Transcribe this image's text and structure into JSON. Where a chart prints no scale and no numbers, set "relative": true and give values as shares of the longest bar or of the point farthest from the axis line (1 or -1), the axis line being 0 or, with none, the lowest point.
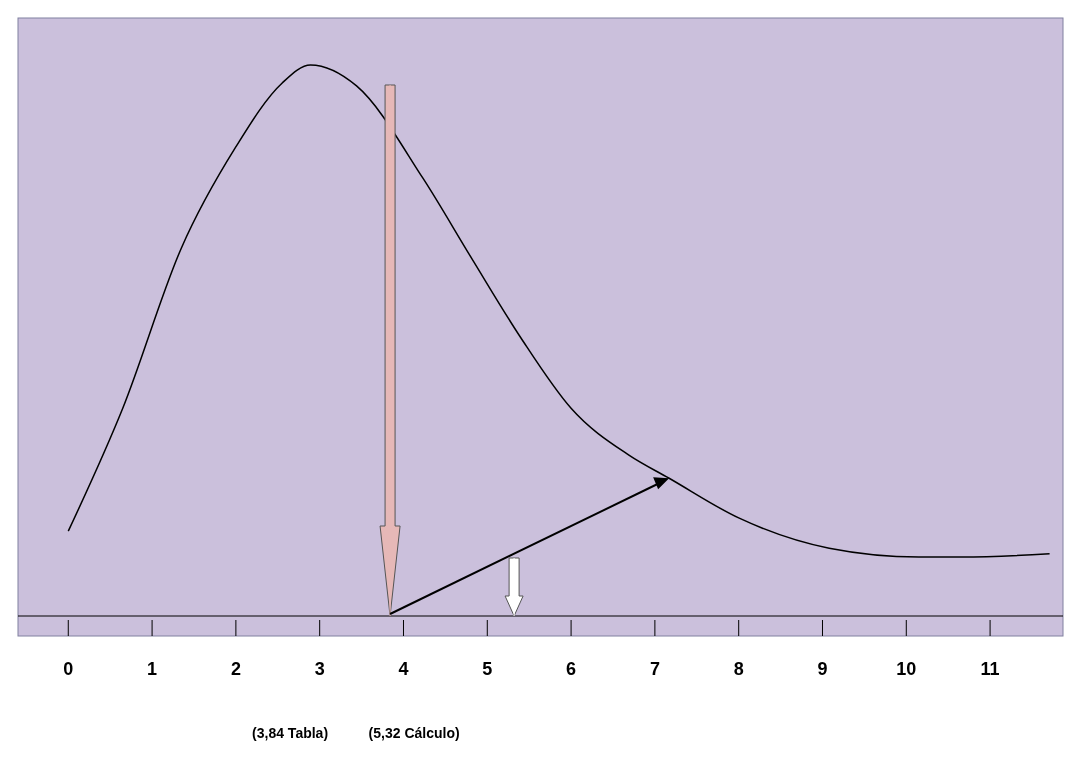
{
  "chart_data": {
    "type": "line",
    "relative": true,
    "x": [
      0,
      0.65,
      1.35,
      1.99,
      2.55,
      2.89,
      3.44,
      4.23,
      4.81,
      5.4,
      6.0,
      6.69,
      7.17,
      8.0,
      9.08,
      10.15,
      10.67,
      11.71
    ],
    "series": [
      {
        "color": "#000000",
        "values": [
          0.154,
          0.377,
          0.668,
          0.849,
          0.967,
          1,
          0.962,
          0.795,
          0.65,
          0.505,
          0.377,
          0.292,
          0.25,
          0.178,
          0.123,
          0.107,
          0.107,
          0.113
        ]
      }
    ],
    "xlim": [
      -0.6,
      11.87
    ],
    "xticks": [
      0,
      1,
      2,
      3,
      4,
      5,
      6,
      7,
      8,
      9,
      10,
      11
    ],
    "ref_lines": [
      {
        "axis": "x",
        "value": 3.84,
        "color": "#e6b8b7"
      },
      {
        "axis": "x",
        "value": 5.32,
        "color": "#ffffff"
      }
    ],
    "annotations": [
      "(3,84 Tabla)",
      "(5,32 Cálculo)"
    ],
    "marker": "none",
    "line_style": "solid",
    "grid": false
  }
}
